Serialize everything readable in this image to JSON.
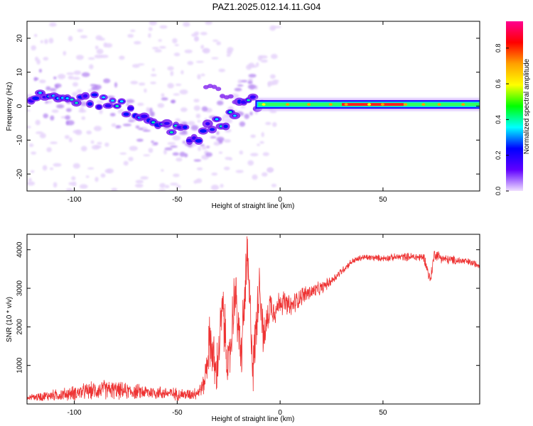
{
  "title": "PAZ1.2025.012.14.11.G04",
  "chart_data": [
    {
      "type": "heatmap",
      "xlabel": "Height of straight line (km)",
      "ylabel": "Frequency (Hz)",
      "xlim": [
        -123,
        97
      ],
      "ylim": [
        -25,
        25
      ],
      "xticks": [
        -100,
        -50,
        0,
        50
      ],
      "yticks": [
        -20,
        -10,
        0,
        10,
        20
      ],
      "colorbar": {
        "label": "Normalized spectral amplitude",
        "range": [
          0,
          0.95
        ],
        "ticks": [
          0.0,
          0.2,
          0.4,
          0.6,
          0.8
        ],
        "colormap": [
          "#ff0090",
          "#ff0000",
          "#ffa000",
          "#ffff00",
          "#00ff00",
          "#00ffff",
          "#0000ff",
          "#6000ff",
          "#f0e0ff"
        ]
      },
      "signal_track": [
        {
          "x": -120,
          "f": 3.5
        },
        {
          "x": -110,
          "f": 3.0
        },
        {
          "x": -100,
          "f": 2.5
        },
        {
          "x": -90,
          "f": 1.5
        },
        {
          "x": -80,
          "f": 0.5
        },
        {
          "x": -70,
          "f": -1.5
        },
        {
          "x": -60,
          "f": -4.5
        },
        {
          "x": -50,
          "f": -6.5
        },
        {
          "x": -45,
          "f": -8.5
        },
        {
          "x": -40,
          "f": -9.0
        },
        {
          "x": -35,
          "f": -7.0
        },
        {
          "x": -30,
          "f": -5.5
        },
        {
          "x": -25,
          "f": -4.0
        },
        {
          "x": -20,
          "f": 1.0
        },
        {
          "x": -15,
          "f": 2.5
        },
        {
          "x": -10,
          "f": 0.5
        },
        {
          "x": 0,
          "f": 0.5
        },
        {
          "x": 20,
          "f": 0.5
        },
        {
          "x": 40,
          "f": 0.5
        },
        {
          "x": 60,
          "f": 0.5
        },
        {
          "x": 80,
          "f": 0.5
        },
        {
          "x": 97,
          "f": 0.5
        }
      ],
      "band_peak_range_km": [
        30,
        60
      ]
    },
    {
      "type": "line",
      "xlabel": "Height of straight line (km)",
      "ylabel": "SNR (10 * v/v)",
      "xlim": [
        -123,
        97
      ],
      "ylim": [
        0,
        4400
      ],
      "xticks": [
        -100,
        -50,
        0,
        50
      ],
      "yticks": [
        1000,
        2000,
        3000,
        4000
      ],
      "color": "#ee3333",
      "series": [
        {
          "x": [
            -123,
            -115,
            -105,
            -95,
            -85,
            -75,
            -65,
            -55,
            -45,
            -40,
            -37,
            -34,
            -31,
            -28,
            -25,
            -22,
            -19,
            -16,
            -13,
            -10,
            -8,
            -5,
            -2,
            0,
            5,
            10,
            15,
            20,
            25,
            30,
            35,
            40,
            50,
            60,
            70,
            73,
            75,
            80,
            90,
            97
          ],
          "y": [
            150,
            200,
            250,
            320,
            380,
            330,
            310,
            280,
            240,
            300,
            500,
            1700,
            700,
            2500,
            800,
            3000,
            1200,
            3800,
            900,
            3300,
            1600,
            2600,
            2400,
            2700,
            2500,
            2800,
            2900,
            3000,
            3200,
            3450,
            3700,
            3800,
            3780,
            3820,
            3800,
            3200,
            3900,
            3750,
            3700,
            3600
          ],
          "noise_amplitude": [
            120,
            150,
            200,
            250,
            300,
            250,
            220,
            200,
            180,
            200,
            300,
            900,
            800,
            900,
            900,
            900,
            900,
            900,
            900,
            800,
            600,
            500,
            400,
            400,
            350,
            300,
            250,
            200,
            150,
            120,
            100,
            100,
            100,
            120,
            150,
            200,
            180,
            150,
            120,
            100
          ]
        }
      ]
    }
  ]
}
